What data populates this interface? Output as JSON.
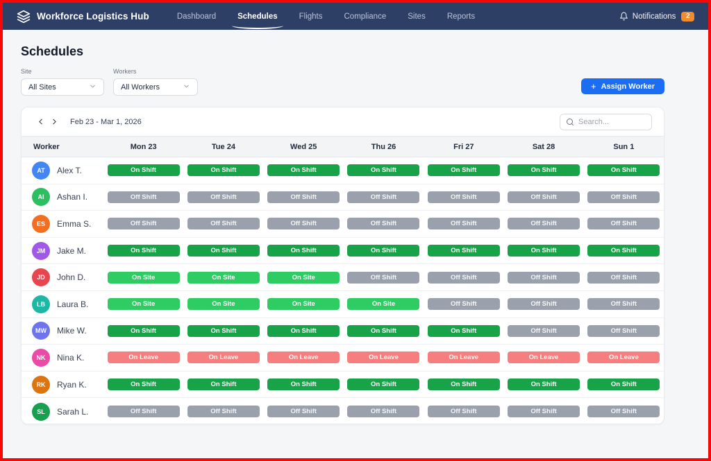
{
  "navbar": {
    "brand": "Workforce Logistics Hub",
    "items": [
      {
        "label": "Dashboard",
        "active": false
      },
      {
        "label": "Schedules",
        "active": true
      },
      {
        "label": "Flights",
        "active": false
      },
      {
        "label": "Compliance",
        "active": false
      },
      {
        "label": "Sites",
        "active": false
      },
      {
        "label": "Reports",
        "active": false
      }
    ],
    "notifications": {
      "label": "Notifications",
      "count": "2"
    }
  },
  "page": {
    "title": "Schedules"
  },
  "filters": {
    "site": {
      "label": "Site",
      "value": "All Sites"
    },
    "workers": {
      "label": "Workers",
      "value": "All Workers"
    }
  },
  "assign": {
    "plus": "+",
    "label": "Assign Worker"
  },
  "week": {
    "range": "Feb 23 - Mar 1, 2026"
  },
  "search": {
    "placeholder": "Search..."
  },
  "colors": {
    "navbar_bg": "#2e3f66",
    "accent_blue": "#1b6ef3",
    "notification_badge": "#f08b2e",
    "frame_border": "#f50808"
  },
  "table": {
    "columns": [
      "Worker",
      "Mon 23",
      "Tue 24",
      "Wed 25",
      "Thu 26",
      "Fri 27",
      "Sat 28",
      "Sun 1"
    ],
    "status_colors": {
      "On Shift": "#18a349",
      "On Site": "#2ecc63",
      "Off Shift": "#9aa1ac",
      "On Leave": "#f67e7e"
    },
    "rows": [
      {
        "initials": "AT",
        "name": "Alex T.",
        "avatar_color": "#4285f4",
        "shifts": [
          "On Shift",
          "On Shift",
          "On Shift",
          "On Shift",
          "On Shift",
          "On Shift",
          "On Shift"
        ]
      },
      {
        "initials": "AI",
        "name": "Ashan I.",
        "avatar_color": "#2dbe60",
        "shifts": [
          "Off Shift",
          "Off Shift",
          "Off Shift",
          "Off Shift",
          "Off Shift",
          "Off Shift",
          "Off Shift"
        ]
      },
      {
        "initials": "ES",
        "name": "Emma S.",
        "avatar_color": "#f26f21",
        "shifts": [
          "Off Shift",
          "Off Shift",
          "Off Shift",
          "Off Shift",
          "Off Shift",
          "Off Shift",
          "Off Shift"
        ]
      },
      {
        "initials": "JM",
        "name": "Jake M.",
        "avatar_color": "#a158e8",
        "shifts": [
          "On Shift",
          "On Shift",
          "On Shift",
          "On Shift",
          "On Shift",
          "On Shift",
          "On Shift"
        ]
      },
      {
        "initials": "JD",
        "name": "John D.",
        "avatar_color": "#e9454e",
        "shifts": [
          "On Site",
          "On Site",
          "On Site",
          "Off Shift",
          "Off Shift",
          "Off Shift",
          "Off Shift"
        ]
      },
      {
        "initials": "LB",
        "name": "Laura B.",
        "avatar_color": "#1cb8a5",
        "shifts": [
          "On Site",
          "On Site",
          "On Site",
          "On Site",
          "Off Shift",
          "Off Shift",
          "Off Shift"
        ]
      },
      {
        "initials": "MW",
        "name": "Mike W.",
        "avatar_color": "#6d74ec",
        "shifts": [
          "On Shift",
          "On Shift",
          "On Shift",
          "On Shift",
          "On Shift",
          "Off Shift",
          "Off Shift"
        ]
      },
      {
        "initials": "NK",
        "name": "Nina K.",
        "avatar_color": "#ea4ba6",
        "shifts": [
          "On Leave",
          "On Leave",
          "On Leave",
          "On Leave",
          "On Leave",
          "On Leave",
          "On Leave"
        ]
      },
      {
        "initials": "RK",
        "name": "Ryan K.",
        "avatar_color": "#da7512",
        "shifts": [
          "On Shift",
          "On Shift",
          "On Shift",
          "On Shift",
          "On Shift",
          "On Shift",
          "On Shift"
        ]
      },
      {
        "initials": "SL",
        "name": "Sarah L.",
        "avatar_color": "#18a050",
        "shifts": [
          "Off Shift",
          "Off Shift",
          "Off Shift",
          "Off Shift",
          "Off Shift",
          "Off Shift",
          "Off Shift"
        ]
      }
    ]
  }
}
